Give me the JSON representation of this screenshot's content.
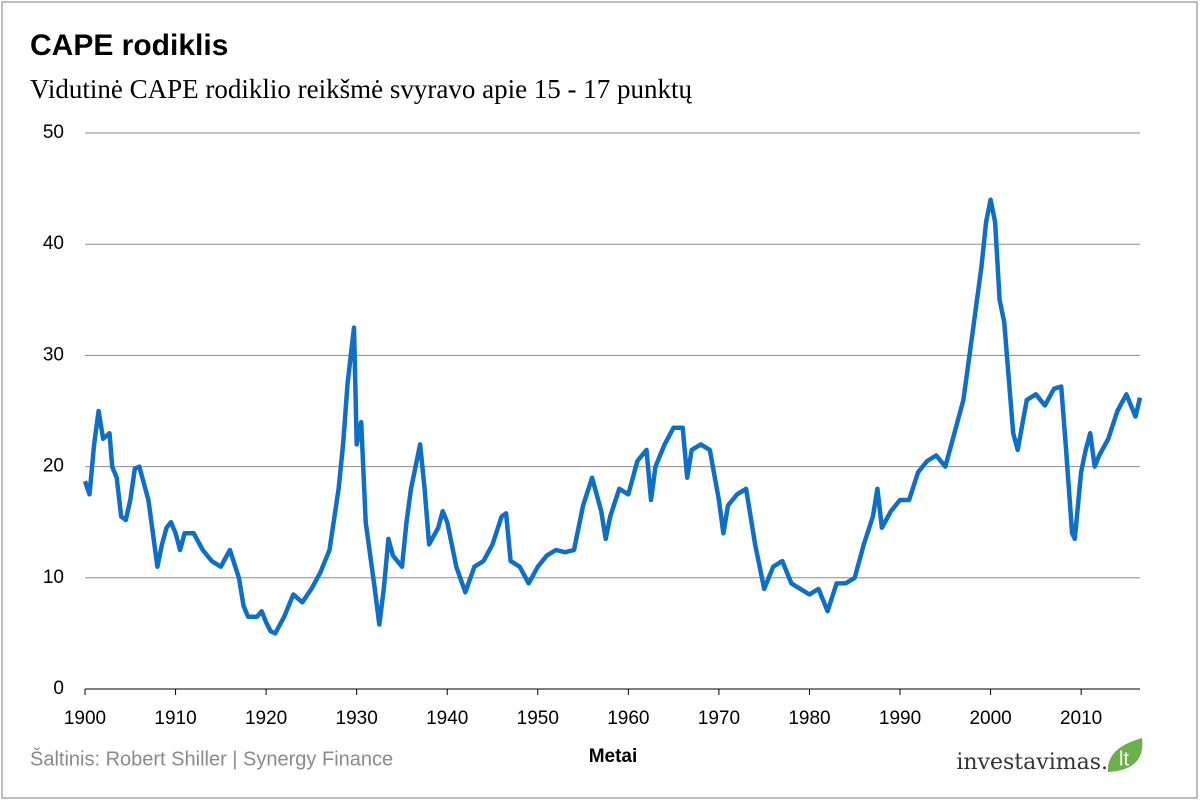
{
  "chart_data": {
    "type": "line",
    "title": "CAPE rodiklis",
    "subtitle": "Vidutinė CAPE rodiklio reikšmė svyravo apie 15 - 17 punktų",
    "x_label": "Metai",
    "source": "Šaltinis: Robert Shiller | Synergy Finance",
    "logo": {
      "name": "investavimas.",
      "suffix": "lt"
    },
    "color": "#0f6fc6",
    "grid": true,
    "xlim": [
      1900,
      2016.5
    ],
    "ylim": [
      0,
      50
    ],
    "xticks": [
      1900,
      1910,
      1920,
      1930,
      1940,
      1950,
      1960,
      1970,
      1980,
      1990,
      2000,
      2010
    ],
    "yticks": [
      0,
      10,
      20,
      30,
      40,
      50
    ],
    "x": [
      1900,
      1900.5,
      1901,
      1901.5,
      1902,
      1902.7,
      1903,
      1903.5,
      1904,
      1904.5,
      1905,
      1905.5,
      1906,
      1906.5,
      1907,
      1907.5,
      1908,
      1908.5,
      1909,
      1909.5,
      1910,
      1910.5,
      1911,
      1912,
      1913,
      1914,
      1915,
      1916,
      1917,
      1917.5,
      1918,
      1919,
      1919.5,
      1920,
      1920.5,
      1921,
      1922,
      1923,
      1924,
      1925,
      1926,
      1927,
      1928,
      1928.5,
      1929,
      1929.7,
      1930,
      1930.5,
      1931,
      1932,
      1932.5,
      1933,
      1933.5,
      1934,
      1935,
      1935.5,
      1936,
      1937,
      1937.5,
      1938,
      1939,
      1939.5,
      1940,
      1940.5,
      1941,
      1942,
      1943,
      1944,
      1945,
      1946,
      1946.5,
      1947,
      1948,
      1949,
      1950,
      1951,
      1952,
      1953,
      1954,
      1955,
      1956,
      1957,
      1957.5,
      1958,
      1959,
      1960,
      1961,
      1962,
      1962.5,
      1963,
      1964,
      1965,
      1966,
      1966.5,
      1967,
      1968,
      1969,
      1970,
      1970.5,
      1971,
      1972,
      1973,
      1974,
      1975,
      1975.5,
      1976,
      1977,
      1978,
      1979,
      1980,
      1981,
      1982,
      1983,
      1984,
      1985,
      1986,
      1987,
      1987.5,
      1988,
      1989,
      1990,
      1991,
      1992,
      1993,
      1994,
      1995,
      1996,
      1997,
      1998,
      1999,
      1999.5,
      2000,
      2000.5,
      2001,
      2001.5,
      2002,
      2002.5,
      2003,
      2004,
      2005,
      2006,
      2007,
      2007.8,
      2008.3,
      2009,
      2009.3,
      2010,
      2010.5,
      2011,
      2011.5,
      2012,
      2013,
      2014,
      2015,
      2016,
      2016.5
    ],
    "values": [
      18.7,
      17.5,
      22,
      25,
      22.5,
      23,
      20,
      19,
      15.5,
      15.2,
      17,
      19.8,
      20,
      18.5,
      17,
      14,
      11,
      13,
      14.5,
      15,
      14,
      12.5,
      14,
      14,
      12.5,
      11.5,
      11,
      12.5,
      10,
      7.5,
      6.5,
      6.5,
      7,
      6,
      5.2,
      5,
      6.5,
      8.5,
      7.8,
      9,
      10.5,
      12.5,
      18,
      22,
      27.5,
      32.5,
      22,
      24,
      15,
      9,
      5.8,
      9,
      13.5,
      12,
      11,
      15,
      18,
      22,
      18,
      13,
      14.5,
      16,
      15,
      13,
      11,
      8.7,
      11,
      11.5,
      13,
      15.5,
      15.8,
      11.5,
      11,
      9.5,
      11,
      12,
      12.5,
      12.3,
      12.5,
      16.5,
      19,
      16,
      13.5,
      15.5,
      18,
      17.5,
      20.5,
      21.5,
      17,
      20,
      22,
      23.5,
      23.5,
      19,
      21.5,
      22,
      21.5,
      17,
      14,
      16.5,
      17.5,
      18,
      13,
      9,
      10,
      11,
      11.5,
      9.5,
      9,
      8.5,
      9,
      7,
      9.5,
      9.5,
      10,
      13,
      15.5,
      18,
      14.5,
      16,
      17,
      17,
      19.5,
      20.5,
      21,
      20,
      23,
      26,
      32,
      38,
      42,
      44,
      42,
      35,
      33,
      28,
      23,
      21.5,
      26,
      26.5,
      25.5,
      27,
      27.2,
      22,
      14,
      13.5,
      19.5,
      21.5,
      23,
      20,
      21,
      22.5,
      25,
      26.5,
      24.5,
      26.2
    ]
  }
}
